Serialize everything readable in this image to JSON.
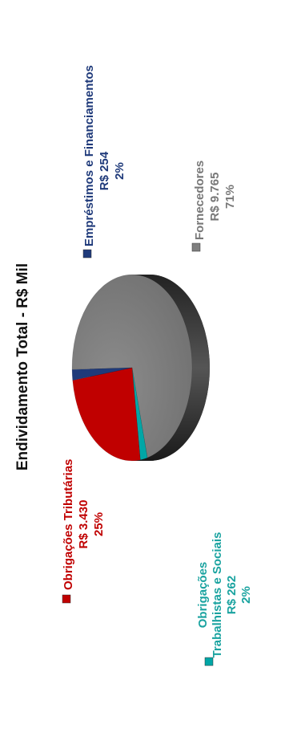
{
  "chart_data": {
    "type": "pie",
    "title": "Endividamento Total -  R$ Mil",
    "legend_placement": "around",
    "slices": [
      {
        "name": "Fornecedores",
        "amount": "R$ 9.765",
        "percent_label": "71%",
        "value": 9765,
        "color": "#7f7f7f",
        "label_color": "#777777"
      },
      {
        "name": "Obrigações Trabalhistas e Sociais",
        "name_lines": [
          "Obrigações",
          "Trabalhistas  e  Sociais"
        ],
        "amount": "R$ 262",
        "percent_label": "2%",
        "value": 262,
        "color": "#00a6a6",
        "label_color": "#1aa3a0"
      },
      {
        "name": "Obrigações Tributárias",
        "amount": "R$ 3.430",
        "percent_label": "25%",
        "value": 3430,
        "color": "#c00000",
        "label_color": "#c00000"
      },
      {
        "name": "Empréstimos e Financiamentos",
        "amount": "R$ 254",
        "percent_label": "2%",
        "value": 254,
        "color": "#1f3a7a",
        "label_color": "#1f3a7a"
      }
    ]
  }
}
